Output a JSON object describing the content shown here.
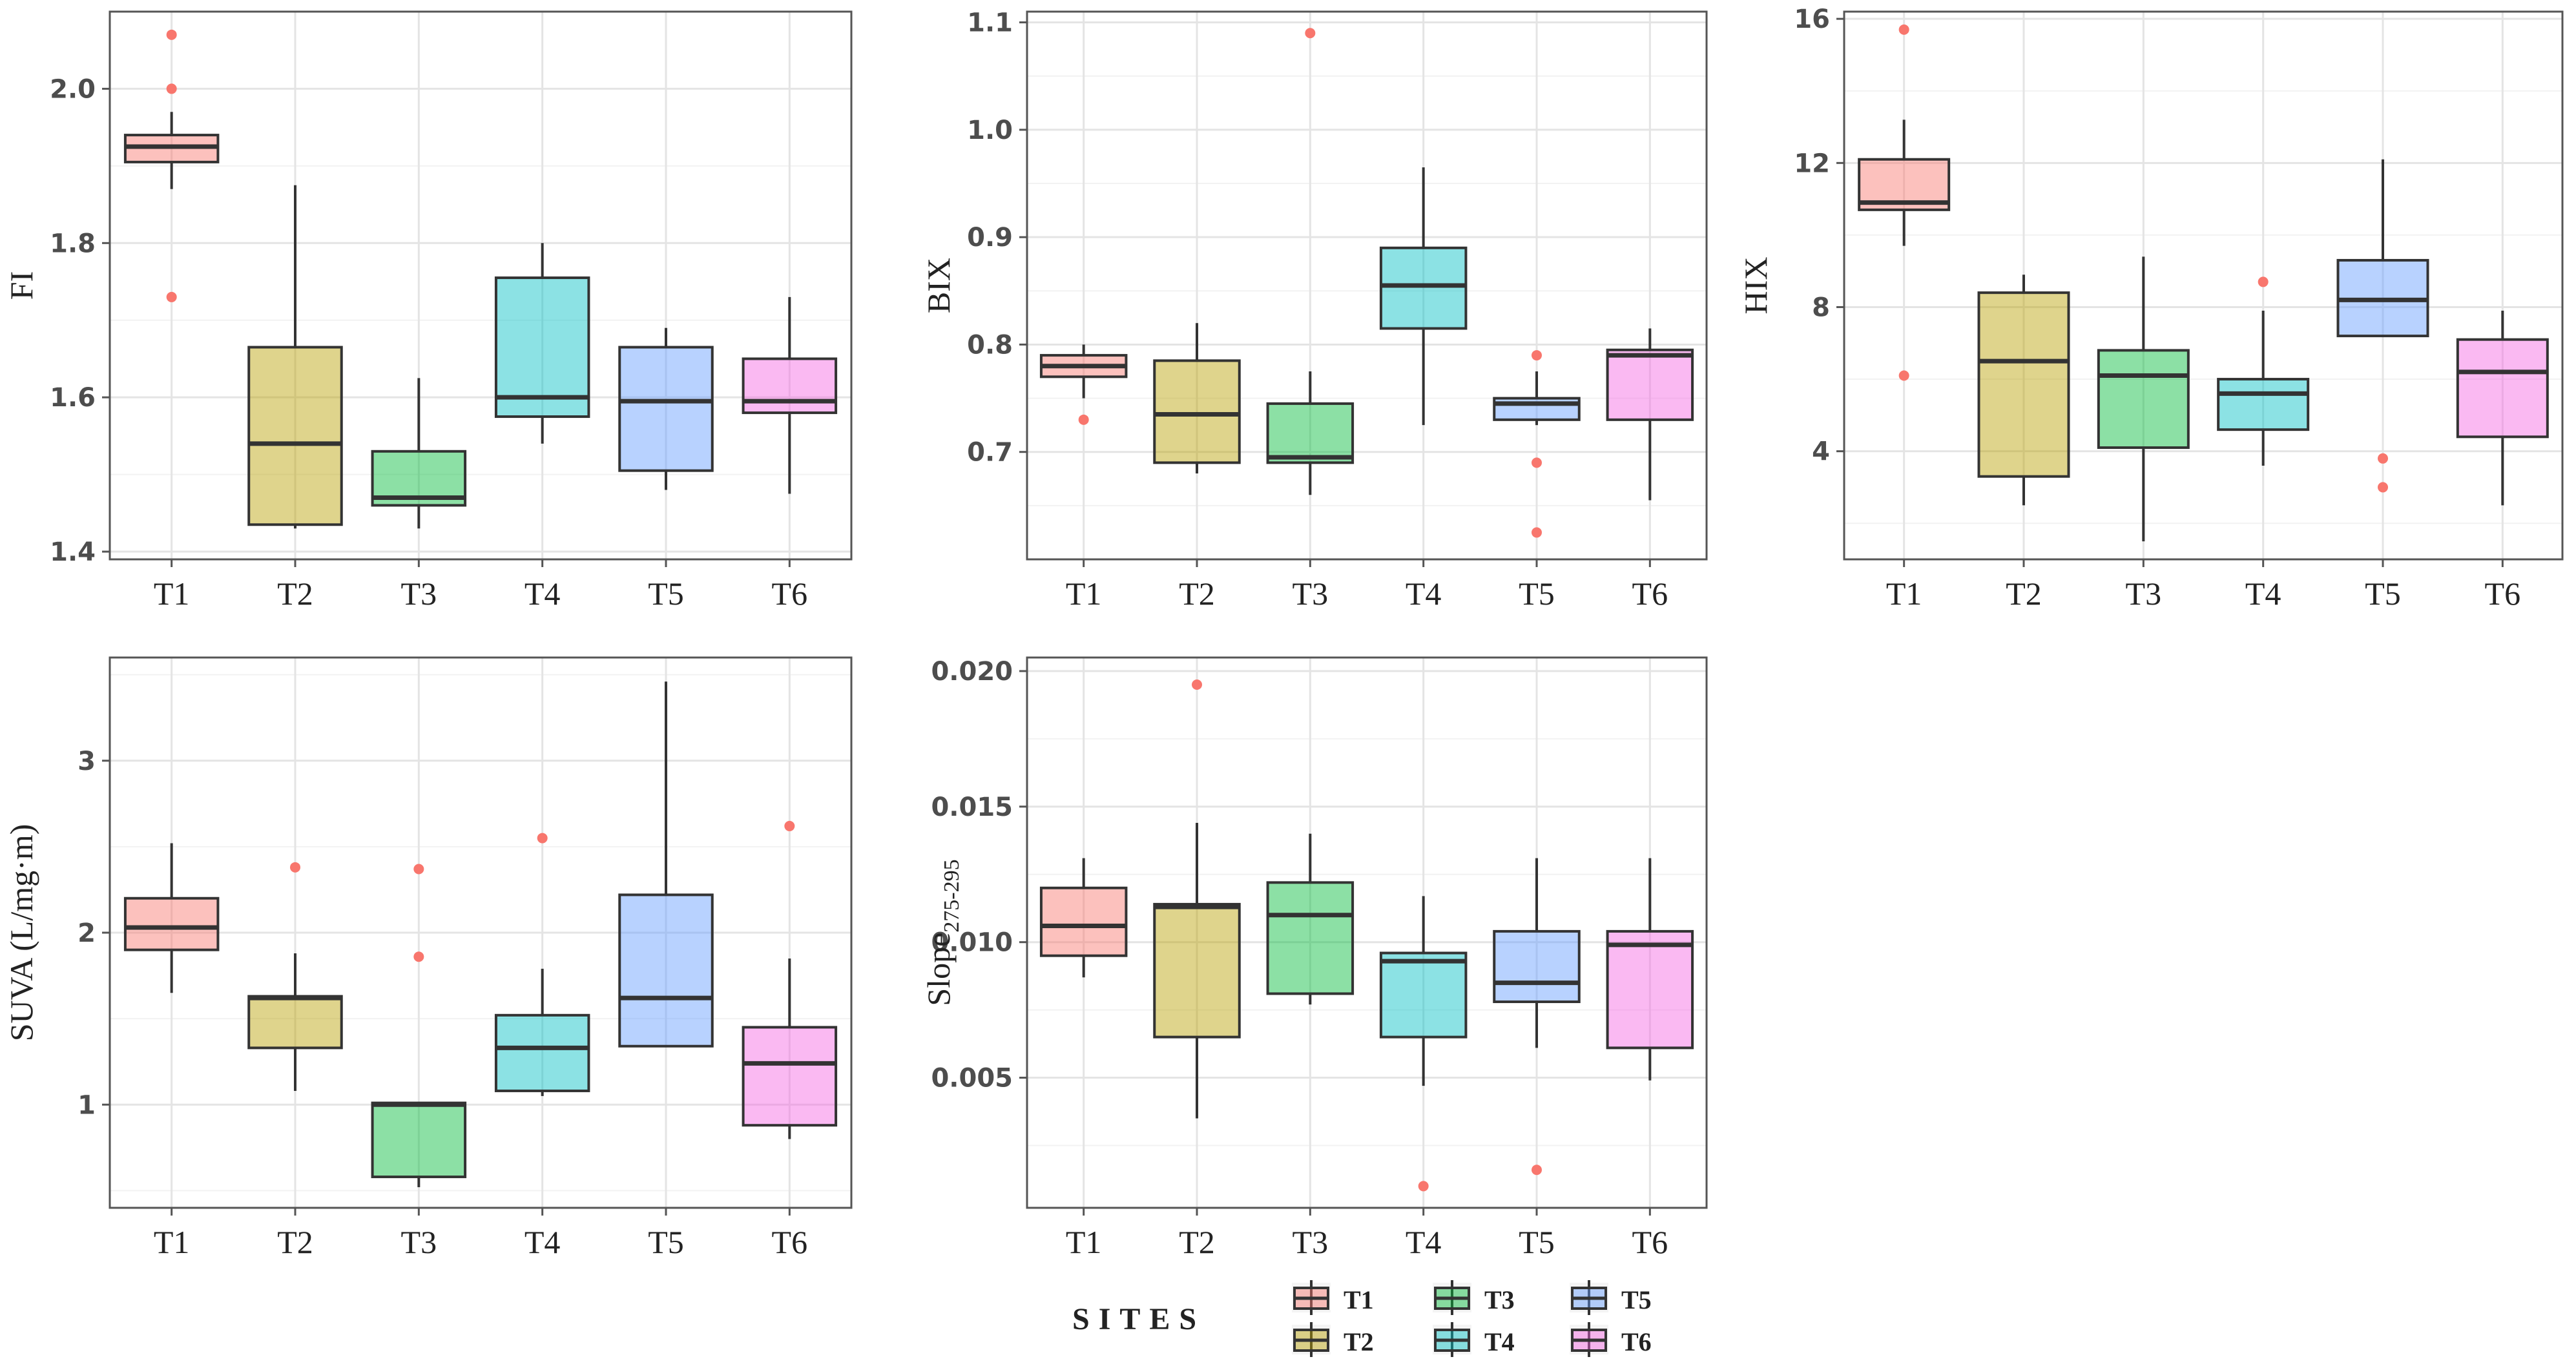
{
  "chart_data": [
    {
      "type": "box",
      "id": "fi",
      "ylabel": "FI",
      "ylim": [
        1.39,
        2.1
      ],
      "yticks": [
        1.4,
        1.6,
        1.8,
        2.0
      ],
      "ytick_labels": [
        "1.4",
        "1.6",
        "1.8",
        "2.0"
      ],
      "categories": [
        "T1",
        "T2",
        "T3",
        "T4",
        "T5",
        "T6"
      ],
      "boxes": [
        {
          "min": 1.87,
          "q1": 1.905,
          "median": 1.925,
          "q3": 1.94,
          "max": 1.97,
          "outliers": [
            2.07,
            2.0,
            1.73
          ]
        },
        {
          "min": 1.43,
          "q1": 1.435,
          "median": 1.54,
          "q3": 1.665,
          "max": 1.875,
          "outliers": []
        },
        {
          "min": 1.43,
          "q1": 1.46,
          "median": 1.47,
          "q3": 1.53,
          "max": 1.625,
          "outliers": []
        },
        {
          "min": 1.54,
          "q1": 1.575,
          "median": 1.6,
          "q3": 1.755,
          "max": 1.8,
          "outliers": []
        },
        {
          "min": 1.48,
          "q1": 1.505,
          "median": 1.595,
          "q3": 1.665,
          "max": 1.69,
          "outliers": []
        },
        {
          "min": 1.475,
          "q1": 1.58,
          "median": 1.595,
          "q3": 1.65,
          "max": 1.73,
          "outliers": []
        }
      ]
    },
    {
      "type": "box",
      "id": "bix",
      "ylabel": "BIX",
      "ylim": [
        0.6,
        1.11
      ],
      "yticks": [
        0.7,
        0.8,
        0.9,
        1.0,
        1.1
      ],
      "ytick_labels": [
        "0.7",
        "0.8",
        "0.9",
        "1.0",
        "1.1"
      ],
      "categories": [
        "T1",
        "T2",
        "T3",
        "T4",
        "T5",
        "T6"
      ],
      "boxes": [
        {
          "min": 0.75,
          "q1": 0.77,
          "median": 0.78,
          "q3": 0.79,
          "max": 0.8,
          "outliers": [
            0.73
          ]
        },
        {
          "min": 0.68,
          "q1": 0.69,
          "median": 0.735,
          "q3": 0.785,
          "max": 0.82,
          "outliers": []
        },
        {
          "min": 0.66,
          "q1": 0.69,
          "median": 0.695,
          "q3": 0.745,
          "max": 0.775,
          "outliers": [
            1.09
          ]
        },
        {
          "min": 0.725,
          "q1": 0.815,
          "median": 0.855,
          "q3": 0.89,
          "max": 0.965,
          "outliers": []
        },
        {
          "min": 0.725,
          "q1": 0.73,
          "median": 0.745,
          "q3": 0.75,
          "max": 0.775,
          "outliers": [
            0.79,
            0.69,
            0.625
          ]
        },
        {
          "min": 0.655,
          "q1": 0.73,
          "median": 0.79,
          "q3": 0.795,
          "max": 0.815,
          "outliers": []
        }
      ]
    },
    {
      "type": "box",
      "id": "hix",
      "ylabel": "HIX",
      "ylim": [
        1.0,
        16.2
      ],
      "yticks": [
        4,
        8,
        12,
        16
      ],
      "ytick_labels": [
        "4",
        "8",
        "12",
        "16"
      ],
      "categories": [
        "T1",
        "T2",
        "T3",
        "T4",
        "T5",
        "T6"
      ],
      "boxes": [
        {
          "min": 9.7,
          "q1": 10.7,
          "median": 10.9,
          "q3": 12.1,
          "max": 13.2,
          "outliers": [
            15.7,
            6.1
          ]
        },
        {
          "min": 2.5,
          "q1": 3.3,
          "median": 6.5,
          "q3": 8.4,
          "max": 8.9,
          "outliers": []
        },
        {
          "min": 1.5,
          "q1": 4.1,
          "median": 6.1,
          "q3": 6.8,
          "max": 9.4,
          "outliers": []
        },
        {
          "min": 3.6,
          "q1": 4.6,
          "median": 5.6,
          "q3": 6.0,
          "max": 7.9,
          "outliers": [
            8.7
          ]
        },
        {
          "min": 7.2,
          "q1": 7.2,
          "median": 8.2,
          "q3": 9.3,
          "max": 12.1,
          "outliers": [
            3.8,
            3.0
          ]
        },
        {
          "min": 2.5,
          "q1": 4.4,
          "median": 6.2,
          "q3": 7.1,
          "max": 7.9,
          "outliers": []
        }
      ]
    },
    {
      "type": "box",
      "id": "suva",
      "ylabel": "SUVA (L/mg·m)",
      "ylim": [
        0.4,
        3.6
      ],
      "yticks": [
        1,
        2,
        3
      ],
      "ytick_labels": [
        "1",
        "2",
        "3"
      ],
      "categories": [
        "T1",
        "T2",
        "T3",
        "T4",
        "T5",
        "T6"
      ],
      "boxes": [
        {
          "min": 1.65,
          "q1": 1.9,
          "median": 2.03,
          "q3": 2.2,
          "max": 2.52,
          "outliers": []
        },
        {
          "min": 1.08,
          "q1": 1.33,
          "median": 1.62,
          "q3": 1.63,
          "max": 1.88,
          "outliers": [
            2.38
          ]
        },
        {
          "min": 0.52,
          "q1": 0.58,
          "median": 1.0,
          "q3": 1.01,
          "max": 1.01,
          "outliers": [
            2.37,
            1.86
          ]
        },
        {
          "min": 1.05,
          "q1": 1.08,
          "median": 1.33,
          "q3": 1.52,
          "max": 1.79,
          "outliers": [
            2.55
          ]
        },
        {
          "min": 1.34,
          "q1": 1.34,
          "median": 1.62,
          "q3": 2.22,
          "max": 3.46,
          "outliers": []
        },
        {
          "min": 0.8,
          "q1": 0.88,
          "median": 1.24,
          "q3": 1.45,
          "max": 1.85,
          "outliers": [
            2.62
          ]
        }
      ]
    },
    {
      "type": "box",
      "id": "slope",
      "ylabel": "Slope",
      "ylabel_subscript": "275-295",
      "ylim": [
        0.0002,
        0.0205
      ],
      "yticks": [
        0.005,
        0.01,
        0.015,
        0.02
      ],
      "ytick_labels": [
        "0.005",
        "0.010",
        "0.015",
        "0.020"
      ],
      "categories": [
        "T1",
        "T2",
        "T3",
        "T4",
        "T5",
        "T6"
      ],
      "boxes": [
        {
          "min": 0.0087,
          "q1": 0.0095,
          "median": 0.0106,
          "q3": 0.012,
          "max": 0.0131,
          "outliers": []
        },
        {
          "min": 0.0035,
          "q1": 0.0065,
          "median": 0.0113,
          "q3": 0.0114,
          "max": 0.0144,
          "outliers": [
            0.0195
          ]
        },
        {
          "min": 0.0077,
          "q1": 0.0081,
          "median": 0.011,
          "q3": 0.0122,
          "max": 0.014,
          "outliers": []
        },
        {
          "min": 0.0047,
          "q1": 0.0065,
          "median": 0.0093,
          "q3": 0.0096,
          "max": 0.0117,
          "outliers": [
            0.001
          ]
        },
        {
          "min": 0.0061,
          "q1": 0.0078,
          "median": 0.0085,
          "q3": 0.0104,
          "max": 0.0131,
          "outliers": [
            0.0016
          ]
        },
        {
          "min": 0.0049,
          "q1": 0.0061,
          "median": 0.0099,
          "q3": 0.0104,
          "max": 0.0131,
          "outliers": []
        }
      ]
    }
  ],
  "legend": {
    "title": "SITES",
    "items": [
      {
        "label": "T1",
        "color": "#f8766d"
      },
      {
        "label": "T2",
        "color": "#b79f00"
      },
      {
        "label": "T3",
        "color": "#00ba38"
      },
      {
        "label": "T4",
        "color": "#00bfc4"
      },
      {
        "label": "T5",
        "color": "#619cff"
      },
      {
        "label": "T6",
        "color": "#f564e3"
      }
    ]
  },
  "style": {
    "outlier_color": "#f8766d",
    "panel_border": "#555555",
    "grid_major": "#e4e4e4",
    "grid_minor": "#f2f2f2",
    "box_line": "#333333"
  }
}
